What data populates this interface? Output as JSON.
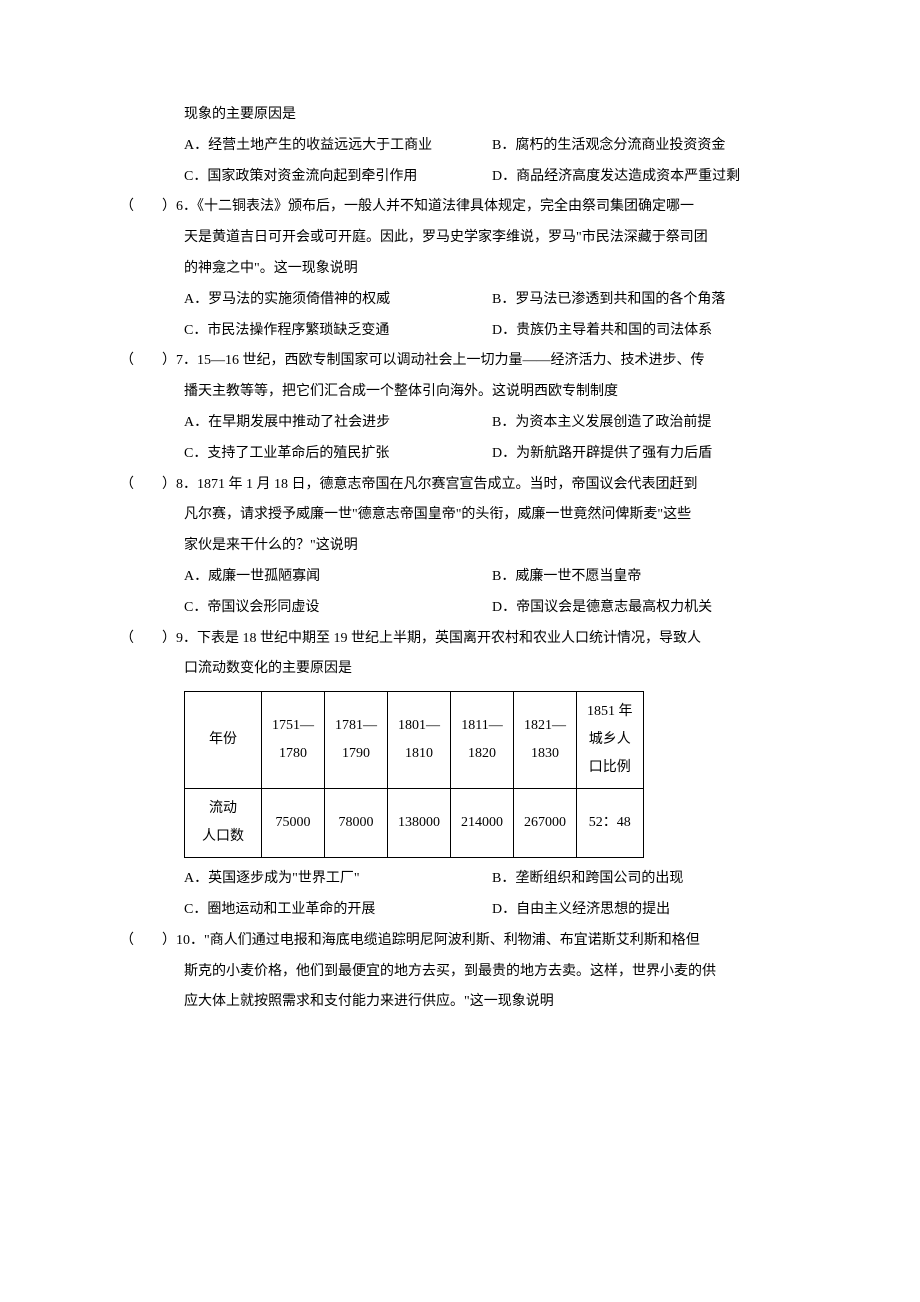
{
  "prelude": {
    "line": "现象的主要原因是",
    "choices": {
      "A": "A．经营土地产生的收益远远大于工商业",
      "B": "B．腐朽的生活观念分流商业投资资金",
      "C": "C．国家政策对资金流向起到牵引作用",
      "D": "D．商品经济高度发达造成资本严重过剩"
    }
  },
  "q6": {
    "prefix": "（　　）6．",
    "stem1": "《十二铜表法》颁布后，一般人并不知道法律具体规定，完全由祭司集团确定哪一",
    "stem2": "天是黄道吉日可开会或可开庭。因此，罗马史学家李维说，罗马\"市民法深藏于祭司团",
    "stem3": "的神龛之中\"。这一现象说明",
    "choices": {
      "A": "A．罗马法的实施须倚借神的权威",
      "B": "B．罗马法已渗透到共和国的各个角落",
      "C": "C．市民法操作程序繁琐缺乏变通",
      "D": "D．贵族仍主导着共和国的司法体系"
    }
  },
  "q7": {
    "prefix": "（　　）7．",
    "stem1": "15—16 世纪，西欧专制国家可以调动社会上一切力量——经济活力、技术进步、传",
    "stem2": "播天主教等等，把它们汇合成一个整体引向海外。这说明西欧专制制度",
    "choices": {
      "A": "A．在早期发展中推动了社会进步",
      "B": "B．为资本主义发展创造了政治前提",
      "C": "C．支持了工业革命后的殖民扩张",
      "D": "D．为新航路开辟提供了强有力后盾"
    }
  },
  "q8": {
    "prefix": "（　　）8．",
    "stem1": "1871 年 1 月 18 日，德意志帝国在凡尔赛宫宣告成立。当时，帝国议会代表团赶到",
    "stem2": "凡尔赛，请求授予威廉一世\"德意志帝国皇帝\"的头衔，威廉一世竟然问俾斯麦\"这些",
    "stem3": "家伙是来干什么的？\"这说明",
    "choices": {
      "A": "A．威廉一世孤陋寡闻",
      "B": "B．威廉一世不愿当皇帝",
      "C": "C．帝国议会形同虚设",
      "D": "D．帝国议会是德意志最高权力机关"
    }
  },
  "q9": {
    "prefix": "（　　）9．",
    "stem1": "下表是 18 世纪中期至 19 世纪上半期，英国离开农村和农业人口统计情况，导致人",
    "stem2": "口流动数变化的主要原因是",
    "table": {
      "row1_label_l1": "年份",
      "row2_label_l1": "流动",
      "row2_label_l2": "人口数",
      "cols": [
        {
          "h1": "1751—",
          "h2": "1780",
          "v": "75000"
        },
        {
          "h1": "1781—",
          "h2": "1790",
          "v": "78000"
        },
        {
          "h1": "1801—",
          "h2": "1810",
          "v": "138000"
        },
        {
          "h1": "1811—",
          "h2": "1820",
          "v": "214000"
        },
        {
          "h1": "1821—",
          "h2": "1830",
          "v": "267000"
        },
        {
          "h1": "1851 年",
          "h2": "城乡人",
          "h3": "口比例",
          "v": "52：48"
        }
      ]
    },
    "choices": {
      "A": "A．英国逐步成为\"世界工厂\"",
      "B": "B．垄断组织和跨国公司的出现",
      "C": "C．圈地运动和工业革命的开展",
      "D": "D．自由主义经济思想的提出"
    }
  },
  "q10": {
    "prefix": "（　　）10．",
    "stem1": "\"商人们通过电报和海底电缆追踪明尼阿波利斯、利物浦、布宜诺斯艾利斯和格但",
    "stem2": "斯克的小麦价格，他们到最便宜的地方去买，到最贵的地方去卖。这样，世界小麦的供",
    "stem3": "应大体上就按照需求和支付能力来进行供应。\"这一现象说明"
  }
}
